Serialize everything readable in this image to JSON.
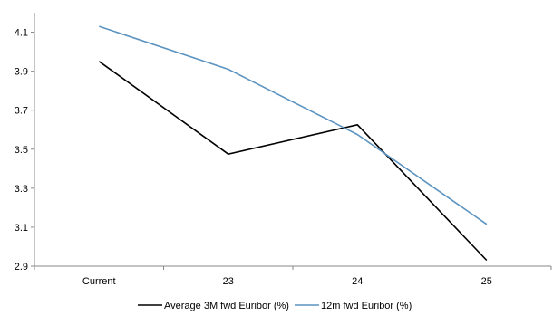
{
  "chart_data": {
    "type": "line",
    "title": "",
    "xlabel": "",
    "ylabel": "",
    "categories": [
      "Current",
      "23",
      "24",
      "25"
    ],
    "ylim": [
      2.9,
      4.2
    ],
    "yticks": [
      "2.9",
      "3.1",
      "3.3",
      "3.5",
      "3.7",
      "3.9",
      "4.1"
    ],
    "grid": false,
    "legend_position": "bottom",
    "series": [
      {
        "name": "Average 3M fwd Euribor (%)",
        "color": "#000000",
        "values": [
          3.95,
          3.475,
          3.625,
          2.93
        ]
      },
      {
        "name": "12m fwd Euribor (%)",
        "color": "#5b93c1",
        "values": [
          4.13,
          3.91,
          3.575,
          3.115
        ]
      }
    ]
  }
}
